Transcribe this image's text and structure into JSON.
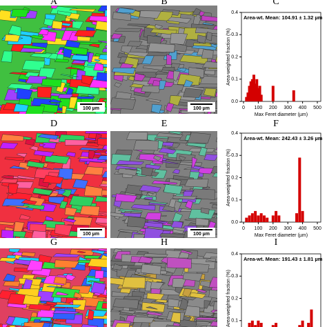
{
  "panel_labels": [
    "A",
    "B",
    "C",
    "D",
    "E",
    "F",
    "G",
    "H",
    "I"
  ],
  "scale_bars": [
    "100 µm",
    "100 µm",
    "100 µm",
    "100 µm"
  ],
  "chart_data": [
    {
      "type": "bar",
      "title": "Area-wt. Mean: 104.91 ± 1.32 µm",
      "x_label": "Max Feret diameter (µm)",
      "y_label": "Area-weighted fraction (%)",
      "color": "#d40000",
      "x": [
        20,
        30,
        40,
        50,
        60,
        70,
        80,
        90,
        100,
        110,
        120,
        200,
        340
      ],
      "values": [
        0.02,
        0.04,
        0.07,
        0.09,
        0.1,
        0.12,
        0.08,
        0.1,
        0.06,
        0.07,
        0.03,
        0.07,
        0.05
      ],
      "xlim": [
        0,
        500
      ],
      "xticks": [
        0,
        100,
        200,
        300,
        400,
        500
      ],
      "ylim": [
        0,
        0.4
      ],
      "yticks": [
        {
          "value": 0,
          "label": "0.0"
        },
        0.1,
        0.2,
        0.3,
        0.4
      ]
    },
    {
      "type": "bar",
      "title": "Area-wt. Mean: 242.43 ± 3.26 µm",
      "x_label": "Max Feret diameter (µm)",
      "y_label": "Area-weighted fraction (%)",
      "color": "#d40000",
      "x": [
        20,
        40,
        60,
        80,
        100,
        120,
        140,
        160,
        200,
        220,
        240,
        360,
        380,
        400
      ],
      "values": [
        0.02,
        0.03,
        0.04,
        0.05,
        0.03,
        0.04,
        0.03,
        0.02,
        0.03,
        0.05,
        0.03,
        0.04,
        0.29,
        0.05
      ],
      "xlim": [
        0,
        500
      ],
      "xticks": [
        0,
        100,
        200,
        300,
        400,
        500
      ],
      "ylim": [
        0,
        0.4
      ],
      "yticks": [
        {
          "value": 0,
          "label": "0.0"
        },
        0.1,
        0.2,
        0.3,
        0.4
      ]
    },
    {
      "type": "bar",
      "title": "Area-wt. Mean: 191.43 ± 1.81 µm",
      "y_label": "Area-weighted fraction (%)",
      "color": "#d40000",
      "x": [
        20,
        40,
        60,
        80,
        100,
        120,
        140,
        200,
        220,
        240,
        380,
        400,
        440,
        460
      ],
      "values": [
        0.06,
        0.09,
        0.1,
        0.08,
        0.1,
        0.09,
        0.06,
        0.08,
        0.09,
        0.05,
        0.08,
        0.1,
        0.09,
        0.15
      ],
      "xlim": [
        0,
        500
      ],
      "ylim": [
        0,
        0.4
      ],
      "yticks": [
        0.1,
        0.2,
        0.3,
        0.4
      ]
    }
  ]
}
